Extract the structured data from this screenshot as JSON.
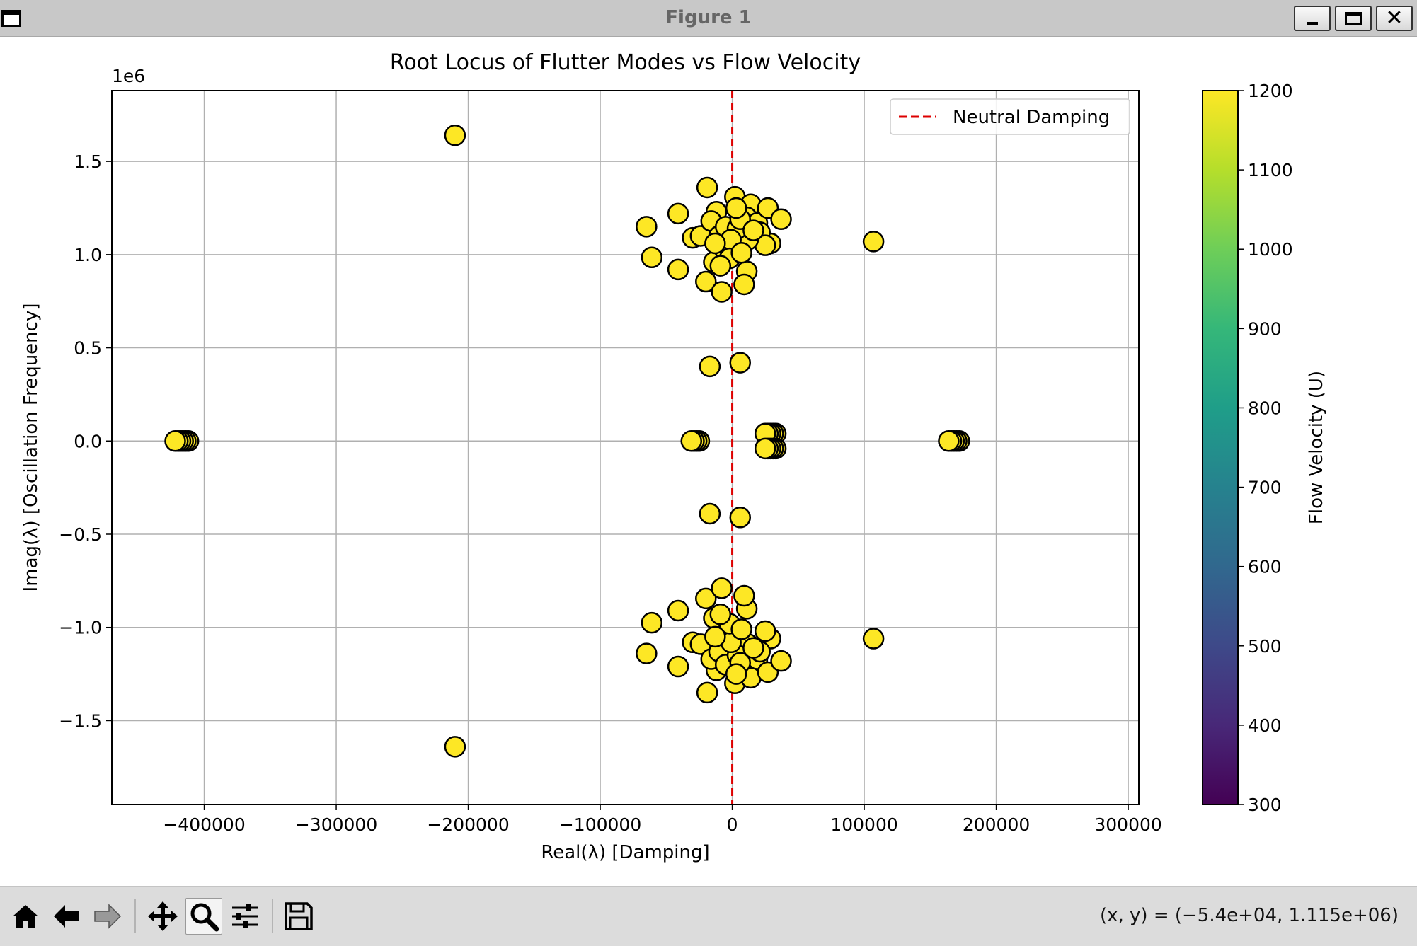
{
  "window": {
    "title": "Figure 1",
    "icons": {
      "app": "window-icon",
      "minimize": "minimize-icon",
      "maximize": "maximize-icon",
      "close": "close-icon"
    },
    "close_glyph": "✕"
  },
  "toolbar": {
    "tools": [
      {
        "name": "home-icon",
        "label": "Home"
      },
      {
        "name": "back-arrow-icon",
        "label": "Back"
      },
      {
        "name": "forward-arrow-icon",
        "label": "Forward"
      },
      {
        "name": "pan-icon",
        "label": "Pan"
      },
      {
        "name": "zoom-icon",
        "label": "Zoom",
        "active": true
      },
      {
        "name": "configure-subplots-icon",
        "label": "Subplots"
      },
      {
        "name": "save-icon",
        "label": "Save"
      }
    ],
    "coordinates": "(x, y) = (−5.4e+04, 1.115e+06)"
  },
  "chart_data": {
    "type": "scatter",
    "title": "Root Locus of Flutter Modes vs Flow Velocity",
    "xlabel": "Real(λ) [Damping]",
    "ylabel": "Imag(λ) [Oscillation Frequency]",
    "xlim": [
      -470000,
      308000
    ],
    "ylim": [
      -1950000,
      1880000
    ],
    "y_offset_label": "1e6",
    "xticks": [
      -400000,
      -300000,
      -200000,
      -100000,
      0,
      100000,
      200000,
      300000
    ],
    "xtick_labels": [
      "−400000",
      "−300000",
      "−200000",
      "−100000",
      "0",
      "100000",
      "200000",
      "300000"
    ],
    "yticks": [
      -1500000,
      -1000000,
      -500000,
      0,
      500000,
      1000000,
      1500000
    ],
    "ytick_labels": [
      "−1.5",
      "−1.0",
      "−0.5",
      "0.0",
      "0.5",
      "1.0",
      "1.5"
    ],
    "grid": true,
    "colors": {
      "marker_fill": "#fde725",
      "marker_edge": "#000000",
      "neutral_line": "#dd0000",
      "grid": "#b0b0b0"
    },
    "reference_line": {
      "x": 0,
      "style": "dashed",
      "label": "Neutral Damping"
    },
    "legend": {
      "position": "top-right",
      "entries": [
        "Neutral Damping"
      ]
    },
    "colorbar": {
      "label": "Flow Velocity (U)",
      "range": [
        300,
        1200
      ],
      "ticks": [
        300,
        400,
        500,
        600,
        700,
        800,
        900,
        1000,
        1100,
        1200
      ],
      "colormap": "viridis",
      "stops": [
        "#440154",
        "#482878",
        "#3e4989",
        "#31688e",
        "#26828e",
        "#1f9e89",
        "#35b779",
        "#6ece58",
        "#b5de2b",
        "#fde725"
      ]
    },
    "points_color_value": 1200,
    "points": [
      [
        -210000,
        1640000
      ],
      [
        -210000,
        -1640000
      ],
      [
        -412000,
        0
      ],
      [
        -414000,
        0
      ],
      [
        -416000,
        0
      ],
      [
        -418000,
        0
      ],
      [
        -420000,
        0
      ],
      [
        -422000,
        0
      ],
      [
        -25000,
        0
      ],
      [
        -27000,
        0
      ],
      [
        -29000,
        0
      ],
      [
        -31000,
        0
      ],
      [
        33000,
        40000
      ],
      [
        31000,
        40000
      ],
      [
        29000,
        40000
      ],
      [
        27000,
        40000
      ],
      [
        25000,
        40000
      ],
      [
        33000,
        -40000
      ],
      [
        31000,
        -40000
      ],
      [
        29000,
        -40000
      ],
      [
        27000,
        -40000
      ],
      [
        25000,
        -40000
      ],
      [
        172000,
        0
      ],
      [
        170000,
        0
      ],
      [
        168000,
        0
      ],
      [
        166000,
        0
      ],
      [
        164000,
        0
      ],
      [
        -17000,
        400000
      ],
      [
        6000,
        420000
      ],
      [
        -17000,
        -390000
      ],
      [
        6000,
        -410000
      ],
      [
        107000,
        1070000
      ],
      [
        107000,
        -1060000
      ],
      [
        -19000,
        1360000
      ],
      [
        -65000,
        1150000
      ],
      [
        -41000,
        1220000
      ],
      [
        -30000,
        1090000
      ],
      [
        -61000,
        985000
      ],
      [
        -41000,
        920000
      ],
      [
        -20000,
        855000
      ],
      [
        -8000,
        800000
      ],
      [
        -24000,
        1100000
      ],
      [
        -12000,
        1230000
      ],
      [
        -16000,
        1180000
      ],
      [
        -10000,
        1100000
      ],
      [
        -5000,
        1150000
      ],
      [
        1000,
        1020000
      ],
      [
        2000,
        1310000
      ],
      [
        8000,
        1240000
      ],
      [
        14000,
        1270000
      ],
      [
        11000,
        1200000
      ],
      [
        19000,
        1170000
      ],
      [
        27000,
        1250000
      ],
      [
        37000,
        1190000
      ],
      [
        29000,
        1060000
      ],
      [
        21000,
        1120000
      ],
      [
        25000,
        1050000
      ],
      [
        12000,
        1080000
      ],
      [
        4000,
        1140000
      ],
      [
        -14000,
        960000
      ],
      [
        11000,
        910000
      ],
      [
        9000,
        840000
      ],
      [
        -6000,
        1030000
      ],
      [
        -1000,
        1080000
      ],
      [
        6000,
        1190000
      ],
      [
        -2000,
        980000
      ],
      [
        7000,
        1010000
      ],
      [
        -9000,
        940000
      ],
      [
        3000,
        1250000
      ],
      [
        -13000,
        1060000
      ],
      [
        16000,
        1130000
      ],
      [
        -19000,
        -1350000
      ],
      [
        -65000,
        -1140000
      ],
      [
        -41000,
        -1210000
      ],
      [
        -30000,
        -1080000
      ],
      [
        -61000,
        -975000
      ],
      [
        -41000,
        -910000
      ],
      [
        -20000,
        -845000
      ],
      [
        -8000,
        -790000
      ],
      [
        -24000,
        -1090000
      ],
      [
        -12000,
        -1230000
      ],
      [
        -16000,
        -1170000
      ],
      [
        -10000,
        -1130000
      ],
      [
        -5000,
        -1200000
      ],
      [
        1000,
        -1020000
      ],
      [
        2000,
        -1300000
      ],
      [
        8000,
        -1240000
      ],
      [
        14000,
        -1270000
      ],
      [
        11000,
        -1160000
      ],
      [
        19000,
        -1170000
      ],
      [
        27000,
        -1240000
      ],
      [
        37000,
        -1180000
      ],
      [
        29000,
        -1060000
      ],
      [
        21000,
        -1130000
      ],
      [
        25000,
        -1020000
      ],
      [
        12000,
        -1090000
      ],
      [
        4000,
        -1150000
      ],
      [
        -14000,
        -950000
      ],
      [
        11000,
        -900000
      ],
      [
        9000,
        -830000
      ],
      [
        -6000,
        -1040000
      ],
      [
        -1000,
        -1080000
      ],
      [
        6000,
        -1190000
      ],
      [
        -2000,
        -980000
      ],
      [
        7000,
        -1010000
      ],
      [
        -9000,
        -930000
      ],
      [
        3000,
        -1250000
      ],
      [
        -13000,
        -1050000
      ],
      [
        16000,
        -1110000
      ]
    ]
  }
}
